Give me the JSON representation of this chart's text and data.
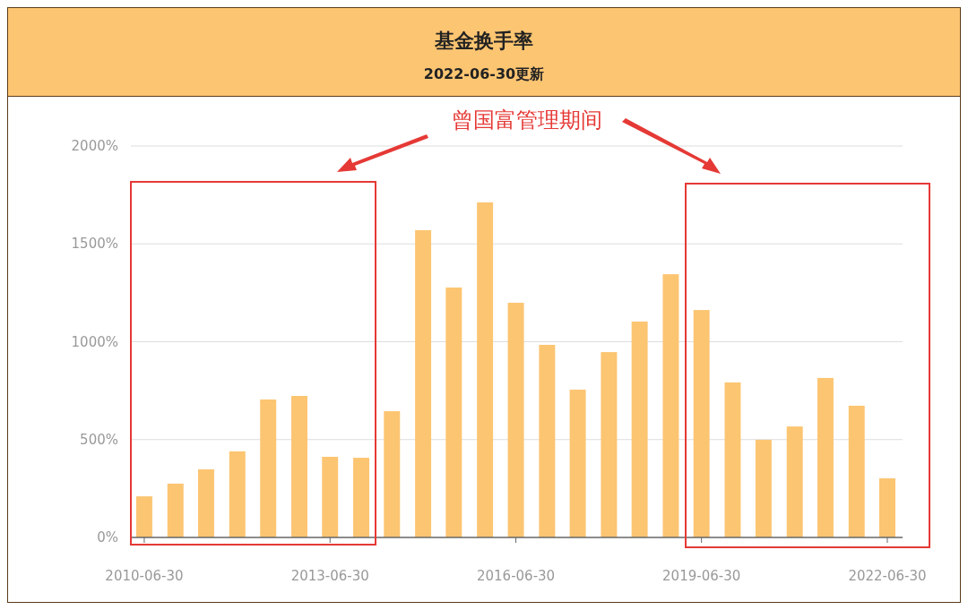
{
  "chart_data": {
    "type": "bar",
    "title": "基金换手率",
    "subtitle": "2022-06-30更新",
    "x": [
      "2010-06-30",
      "2010-12-31",
      "2011-06-30",
      "2011-12-31",
      "2012-06-30",
      "2012-12-31",
      "2013-06-30",
      "2013-12-31",
      "2014-06-30",
      "2014-12-31",
      "2015-06-30",
      "2015-12-31",
      "2016-06-30",
      "2016-12-31",
      "2017-06-30",
      "2017-12-31",
      "2018-06-30",
      "2018-12-31",
      "2019-06-30",
      "2019-12-31",
      "2020-06-30",
      "2020-12-31",
      "2021-06-30",
      "2021-12-31",
      "2022-06-30"
    ],
    "values": [
      210,
      275,
      348,
      440,
      705,
      723,
      412,
      407,
      645,
      1570,
      1277,
      1712,
      1199,
      984,
      755,
      947,
      1103,
      1345,
      1162,
      792,
      499,
      567,
      815,
      673,
      302
    ],
    "color": "#fcc572",
    "xlim": [
      "2010-04-12",
      "2022-09-28"
    ],
    "xticks": [
      {
        "value": "2010-06-30",
        "label": "2010-06-30"
      },
      {
        "value": "2013-06-30",
        "label": "2013-06-30"
      },
      {
        "value": "2016-06-30",
        "label": "2016-06-30"
      },
      {
        "value": "2019-06-30",
        "label": "2019-06-30"
      },
      {
        "value": "2022-06-30",
        "label": "2022-06-30"
      }
    ],
    "ylim": [
      0,
      2000
    ],
    "yticks": [
      {
        "value": 0,
        "label": "0%"
      },
      {
        "value": 500,
        "label": "500%"
      },
      {
        "value": 1000,
        "label": "1000%"
      },
      {
        "value": 1500,
        "label": "1500%"
      },
      {
        "value": 2000,
        "label": "2000%"
      }
    ],
    "grid": "y",
    "annotations": [
      "曾国富管理期间"
    ]
  }
}
